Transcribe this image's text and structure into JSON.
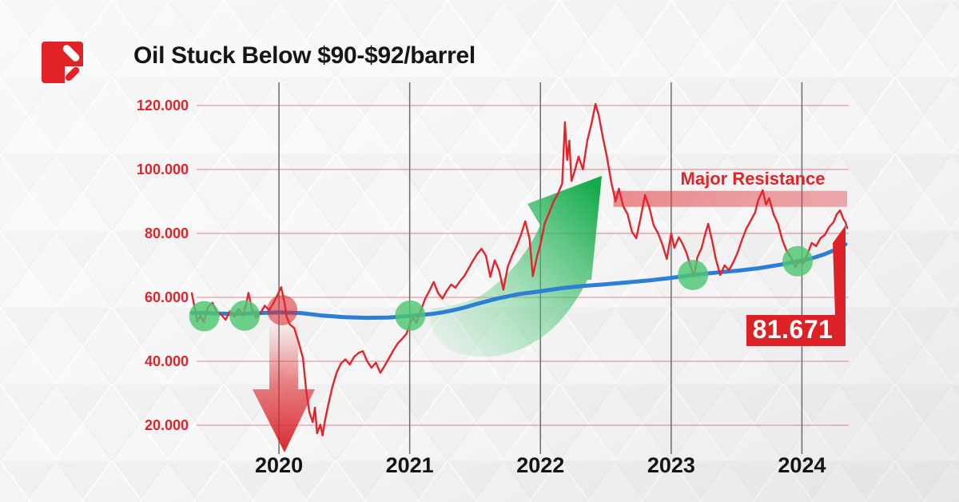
{
  "title": "Oil Stuck Below $90-$92/barrel",
  "brand": {
    "logo_color": "#e12227"
  },
  "annotations": {
    "resistance_label": "Major Resistance",
    "last_price_label": "81.671"
  },
  "colors": {
    "accent_red": "#e2242b",
    "trend_blue": "#2b7fd4",
    "marker_green": "#4cc771",
    "zone_red": "#e23e44",
    "badge_red": "#dc2127"
  },
  "chart_data": {
    "type": "line",
    "title": "Oil Stuck Below $90-$92/barrel",
    "x_axis": {
      "tick_labels": [
        "2020",
        "2021",
        "2022",
        "2023",
        "2024"
      ],
      "tick_months": [
        8,
        20,
        32,
        44,
        56
      ],
      "timeline_start": "mid-2019",
      "timeline_end": "mid-2024",
      "note": "months measured from May 2019"
    },
    "y_axis": {
      "tick_labels": [
        "120.000",
        "100.000",
        "80.000",
        "60.000",
        "40.000",
        "20.000"
      ],
      "tick_values": [
        120,
        100,
        80,
        60,
        40,
        20
      ],
      "range": [
        10,
        126
      ]
    },
    "grid": {
      "horizontal": true,
      "vertical": true
    },
    "series": [
      {
        "name": "Oil price",
        "color": "#e2242b",
        "points": [
          [
            0,
            61.3
          ],
          [
            0.25,
            57
          ],
          [
            0.5,
            52.5
          ],
          [
            0.8,
            54.2
          ],
          [
            1.1,
            52.2
          ],
          [
            1.5,
            57
          ],
          [
            1.9,
            58.3
          ],
          [
            2.3,
            55.4
          ],
          [
            2.7,
            54.6
          ],
          [
            3.1,
            53
          ],
          [
            3.5,
            55.6
          ],
          [
            3.9,
            54
          ],
          [
            4.3,
            56.4
          ],
          [
            4.7,
            54.2
          ],
          [
            5,
            58
          ],
          [
            5.2,
            61.4
          ],
          [
            5.5,
            56.5
          ],
          [
            5.9,
            53.6
          ],
          [
            6.3,
            55
          ],
          [
            6.7,
            57.4
          ],
          [
            7.1,
            56
          ],
          [
            7.5,
            58.2
          ],
          [
            7.9,
            61
          ],
          [
            8.2,
            63.2
          ],
          [
            8.5,
            58.5
          ],
          [
            8.7,
            54
          ],
          [
            9,
            51.5
          ],
          [
            9.4,
            50.4
          ],
          [
            9.8,
            46
          ],
          [
            10.2,
            41
          ],
          [
            10.5,
            31
          ],
          [
            10.8,
            24
          ],
          [
            11.1,
            21
          ],
          [
            11.3,
            25.5
          ],
          [
            11.5,
            17.5
          ],
          [
            11.8,
            20.2
          ],
          [
            12,
            16.8
          ],
          [
            12.2,
            21
          ],
          [
            12.5,
            26
          ],
          [
            12.9,
            32
          ],
          [
            13.3,
            36.5
          ],
          [
            13.7,
            39.4
          ],
          [
            14.1,
            40.6
          ],
          [
            14.5,
            39
          ],
          [
            14.9,
            41.4
          ],
          [
            15.3,
            42.6
          ],
          [
            15.7,
            43.2
          ],
          [
            16.1,
            40
          ],
          [
            16.5,
            38
          ],
          [
            16.9,
            39.6
          ],
          [
            17.3,
            36.4
          ],
          [
            17.7,
            38.6
          ],
          [
            18.1,
            41
          ],
          [
            18.5,
            43.4
          ],
          [
            18.9,
            45.6
          ],
          [
            19.3,
            47
          ],
          [
            19.7,
            48.6
          ],
          [
            20.1,
            52.4
          ],
          [
            20.35,
            53.6
          ],
          [
            20.6,
            52
          ],
          [
            21,
            55.6
          ],
          [
            21.4,
            59.4
          ],
          [
            21.8,
            62
          ],
          [
            22.2,
            64.8
          ],
          [
            22.6,
            61.4
          ],
          [
            23,
            59.6
          ],
          [
            23.4,
            62
          ],
          [
            23.8,
            64
          ],
          [
            24.2,
            63
          ],
          [
            24.6,
            65
          ],
          [
            25,
            66.6
          ],
          [
            25.4,
            69
          ],
          [
            25.8,
            71.4
          ],
          [
            26.2,
            73.6
          ],
          [
            26.6,
            75.2
          ],
          [
            27,
            73
          ],
          [
            27.4,
            66.4
          ],
          [
            27.8,
            71.6
          ],
          [
            28.2,
            68.4
          ],
          [
            28.6,
            62.4
          ],
          [
            29,
            69.6
          ],
          [
            29.4,
            73
          ],
          [
            29.8,
            76
          ],
          [
            30.2,
            79.4
          ],
          [
            30.6,
            83.8
          ],
          [
            31,
            78.4
          ],
          [
            31.3,
            66.6
          ],
          [
            31.7,
            73
          ],
          [
            32,
            76.6
          ],
          [
            32.4,
            83.2
          ],
          [
            32.8,
            86.4
          ],
          [
            33.2,
            90
          ],
          [
            33.6,
            92.4
          ],
          [
            34,
            95.6
          ],
          [
            34.25,
            114.8
          ],
          [
            34.45,
            103
          ],
          [
            34.65,
            109
          ],
          [
            34.85,
            96.4
          ],
          [
            35.1,
            99
          ],
          [
            35.5,
            104
          ],
          [
            35.9,
            100
          ],
          [
            36.3,
            109
          ],
          [
            36.7,
            114.5
          ],
          [
            37.05,
            120.5
          ],
          [
            37.35,
            117
          ],
          [
            37.7,
            110.5
          ],
          [
            38.1,
            104
          ],
          [
            38.5,
            96
          ],
          [
            38.9,
            90
          ],
          [
            39.2,
            94
          ],
          [
            39.6,
            88.5
          ],
          [
            40,
            86
          ],
          [
            40.4,
            80.5
          ],
          [
            40.8,
            78.5
          ],
          [
            41.2,
            85
          ],
          [
            41.6,
            92
          ],
          [
            42,
            88
          ],
          [
            42.4,
            82.5
          ],
          [
            42.8,
            80
          ],
          [
            43.2,
            76.5
          ],
          [
            43.6,
            72
          ],
          [
            44,
            80
          ],
          [
            44.3,
            75.5
          ],
          [
            44.7,
            78.8
          ],
          [
            45,
            77
          ],
          [
            45.4,
            74
          ],
          [
            45.8,
            69.5
          ],
          [
            46.1,
            66.5
          ],
          [
            46.4,
            72.5
          ],
          [
            46.8,
            75.5
          ],
          [
            47.1,
            79.5
          ],
          [
            47.4,
            83
          ],
          [
            47.8,
            77
          ],
          [
            48.1,
            72
          ],
          [
            48.5,
            67
          ],
          [
            48.9,
            70
          ],
          [
            49.3,
            68.5
          ],
          [
            49.7,
            71
          ],
          [
            50.1,
            74
          ],
          [
            50.5,
            78
          ],
          [
            50.9,
            81.5
          ],
          [
            51.3,
            84
          ],
          [
            51.7,
            86.5
          ],
          [
            52,
            90.5
          ],
          [
            52.4,
            93.5
          ],
          [
            52.7,
            89
          ],
          [
            53,
            91
          ],
          [
            53.4,
            86
          ],
          [
            53.8,
            83
          ],
          [
            54.2,
            78
          ],
          [
            54.6,
            74.5
          ],
          [
            55,
            72.5
          ],
          [
            55.4,
            69.5
          ],
          [
            55.8,
            71.5
          ],
          [
            56.1,
            70.5
          ],
          [
            56.5,
            73.5
          ],
          [
            56.9,
            77
          ],
          [
            57.3,
            76
          ],
          [
            57.7,
            78.5
          ],
          [
            58.1,
            79.5
          ],
          [
            58.5,
            82
          ],
          [
            58.9,
            83.5
          ],
          [
            59.2,
            86
          ],
          [
            59.5,
            87.2
          ],
          [
            59.8,
            84.5
          ],
          [
            60,
            83.5
          ],
          [
            60.15,
            81.671
          ]
        ]
      },
      {
        "name": "Long-term trend",
        "color": "#2b7fd4",
        "points": [
          [
            0,
            55.2
          ],
          [
            4,
            54.8
          ],
          [
            8,
            55.3
          ],
          [
            10,
            55.1
          ],
          [
            12,
            54.3
          ],
          [
            14,
            53.8
          ],
          [
            16,
            53.6
          ],
          [
            18,
            53.7
          ],
          [
            20,
            54.2
          ],
          [
            22,
            54.8
          ],
          [
            23,
            55.3
          ],
          [
            24,
            56
          ],
          [
            25,
            56.8
          ],
          [
            26,
            57.8
          ],
          [
            27,
            58.7
          ],
          [
            28,
            59.6
          ],
          [
            30,
            61
          ],
          [
            32,
            61.9
          ],
          [
            34,
            62.9
          ],
          [
            36,
            63.6
          ],
          [
            38,
            64.1
          ],
          [
            40,
            64.7
          ],
          [
            42,
            65.3
          ],
          [
            44,
            66.1
          ],
          [
            46,
            67
          ],
          [
            48,
            67.7
          ],
          [
            50,
            68.3
          ],
          [
            52,
            69.1
          ],
          [
            54,
            70.2
          ],
          [
            56,
            71.5
          ],
          [
            57,
            72.3
          ],
          [
            58,
            73.4
          ],
          [
            59,
            74.8
          ],
          [
            60,
            76.6
          ]
        ]
      }
    ],
    "markers": {
      "trend_touches": {
        "color": "#4cc771",
        "points": [
          [
            1.15,
            54.1
          ],
          [
            4.85,
            54.3
          ],
          [
            20.05,
            54.3
          ],
          [
            46,
            67
          ],
          [
            55.6,
            71.3
          ]
        ]
      },
      "breakdown": {
        "color": "#dd2a30",
        "point": [
          8.3,
          56
        ]
      },
      "resistance_zone": {
        "label": "Major Resistance",
        "price_from": 88.3,
        "price_to": 93.3,
        "month_from": 38.7,
        "month_to": 60.15
      },
      "last_price": {
        "value": 81.671,
        "label": "81.671"
      }
    },
    "legend": {
      "visible": false
    }
  }
}
